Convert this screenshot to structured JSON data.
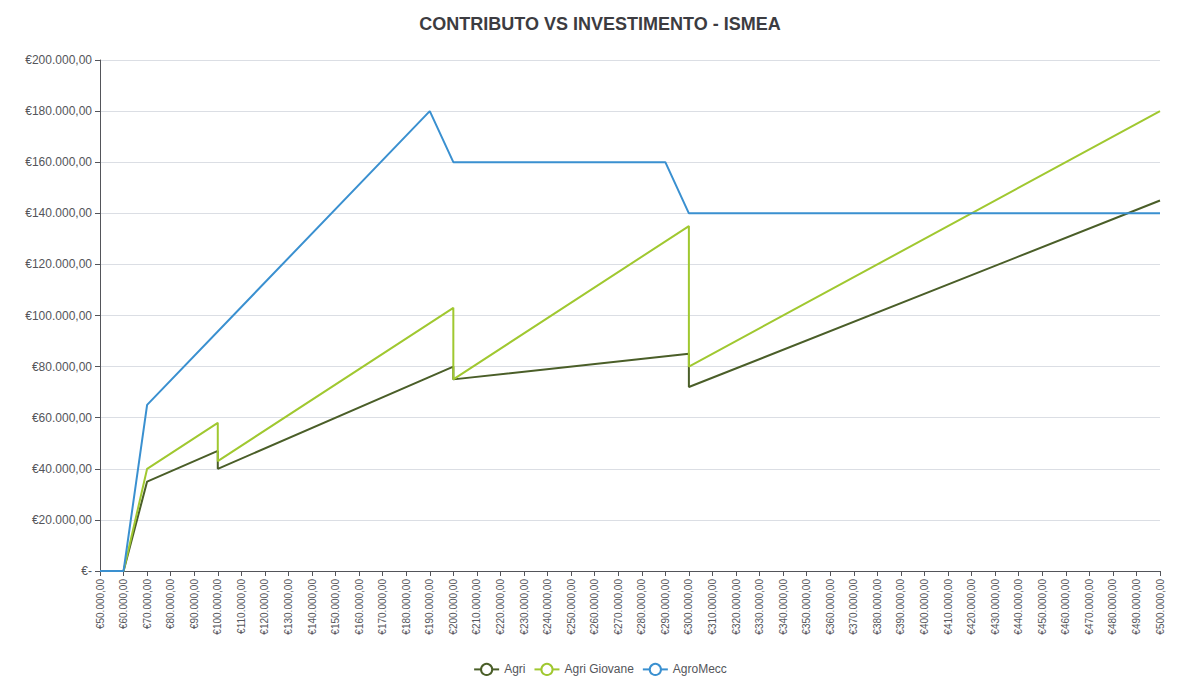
{
  "chart_data": {
    "type": "line",
    "title": "CONTRIBUTO VS INVESTIMENTO - ISMEA",
    "series": [
      {
        "name": "Agri",
        "color": "#4a5e28",
        "x": [
          50000,
          60000,
          70000,
          100000,
          100000,
          200000,
          200000,
          300000,
          300000,
          500000
        ],
        "values": [
          0,
          0,
          35000,
          47000,
          40000,
          80000,
          75000,
          85000,
          72000,
          145000
        ]
      },
      {
        "name": "Agri Giovane",
        "color": "#a0c830",
        "x": [
          50000,
          60000,
          70000,
          100000,
          100000,
          200000,
          200000,
          300000,
          300000,
          500000
        ],
        "values": [
          0,
          0,
          40000,
          58000,
          43000,
          103000,
          75000,
          135000,
          80000,
          180000
        ]
      },
      {
        "name": "AgroMecc",
        "color": "#3a90d0",
        "x": [
          50000,
          60000,
          70000,
          190000,
          200000,
          290000,
          300000,
          500000
        ],
        "values": [
          0,
          0,
          65000,
          180000,
          160000,
          160000,
          140000,
          140000
        ]
      }
    ],
    "xlim": [
      50000,
      500000
    ],
    "xticks": [
      {
        "value": 50000,
        "label": "€50.000,00"
      },
      {
        "value": 60000,
        "label": "€60.000,00"
      },
      {
        "value": 70000,
        "label": "€70.000,00"
      },
      {
        "value": 80000,
        "label": "€80.000,00"
      },
      {
        "value": 90000,
        "label": "€90.000,00"
      },
      {
        "value": 100000,
        "label": "€100.000,00"
      },
      {
        "value": 110000,
        "label": "€110.000,00"
      },
      {
        "value": 120000,
        "label": "€120.000,00"
      },
      {
        "value": 130000,
        "label": "€130.000,00"
      },
      {
        "value": 140000,
        "label": "€140.000,00"
      },
      {
        "value": 150000,
        "label": "€150.000,00"
      },
      {
        "value": 160000,
        "label": "€160.000,00"
      },
      {
        "value": 170000,
        "label": "€170.000,00"
      },
      {
        "value": 180000,
        "label": "€180.000,00"
      },
      {
        "value": 190000,
        "label": "€190.000,00"
      },
      {
        "value": 200000,
        "label": "€200.000,00"
      },
      {
        "value": 210000,
        "label": "€210.000,00"
      },
      {
        "value": 220000,
        "label": "€220.000,00"
      },
      {
        "value": 230000,
        "label": "€230.000,00"
      },
      {
        "value": 240000,
        "label": "€240.000,00"
      },
      {
        "value": 250000,
        "label": "€250.000,00"
      },
      {
        "value": 260000,
        "label": "€260.000,00"
      },
      {
        "value": 270000,
        "label": "€270.000,00"
      },
      {
        "value": 280000,
        "label": "€280.000,00"
      },
      {
        "value": 290000,
        "label": "€290.000,00"
      },
      {
        "value": 300000,
        "label": "€300.000,00"
      },
      {
        "value": 310000,
        "label": "€310.000,00"
      },
      {
        "value": 320000,
        "label": "€320.000,00"
      },
      {
        "value": 330000,
        "label": "€330.000,00"
      },
      {
        "value": 340000,
        "label": "€340.000,00"
      },
      {
        "value": 350000,
        "label": "€350.000,00"
      },
      {
        "value": 360000,
        "label": "€360.000,00"
      },
      {
        "value": 370000,
        "label": "€370.000,00"
      },
      {
        "value": 380000,
        "label": "€380.000,00"
      },
      {
        "value": 390000,
        "label": "€390.000,00"
      },
      {
        "value": 400000,
        "label": "€400.000,00"
      },
      {
        "value": 410000,
        "label": "€410.000,00"
      },
      {
        "value": 420000,
        "label": "€420.000,00"
      },
      {
        "value": 430000,
        "label": "€430.000,00"
      },
      {
        "value": 440000,
        "label": "€440.000,00"
      },
      {
        "value": 450000,
        "label": "€450.000,00"
      },
      {
        "value": 460000,
        "label": "€460.000,00"
      },
      {
        "value": 470000,
        "label": "€470.000,00"
      },
      {
        "value": 480000,
        "label": "€480.000,00"
      },
      {
        "value": 490000,
        "label": "€490.000,00"
      },
      {
        "value": 500000,
        "label": "€500.000,00"
      }
    ],
    "ylim": [
      0,
      200000
    ],
    "yticks": [
      {
        "value": 0,
        "label": "€-"
      },
      {
        "value": 20000,
        "label": "€20.000,00"
      },
      {
        "value": 40000,
        "label": "€40.000,00"
      },
      {
        "value": 60000,
        "label": "€60.000,00"
      },
      {
        "value": 80000,
        "label": "€80.000,00"
      },
      {
        "value": 100000,
        "label": "€100.000,00"
      },
      {
        "value": 120000,
        "label": "€120.000,00"
      },
      {
        "value": 140000,
        "label": "€140.000,00"
      },
      {
        "value": 160000,
        "label": "€160.000,00"
      },
      {
        "value": 180000,
        "label": "€180.000,00"
      },
      {
        "value": 200000,
        "label": "€200.000,00"
      }
    ],
    "grid": "y",
    "legend": "bottom"
  }
}
